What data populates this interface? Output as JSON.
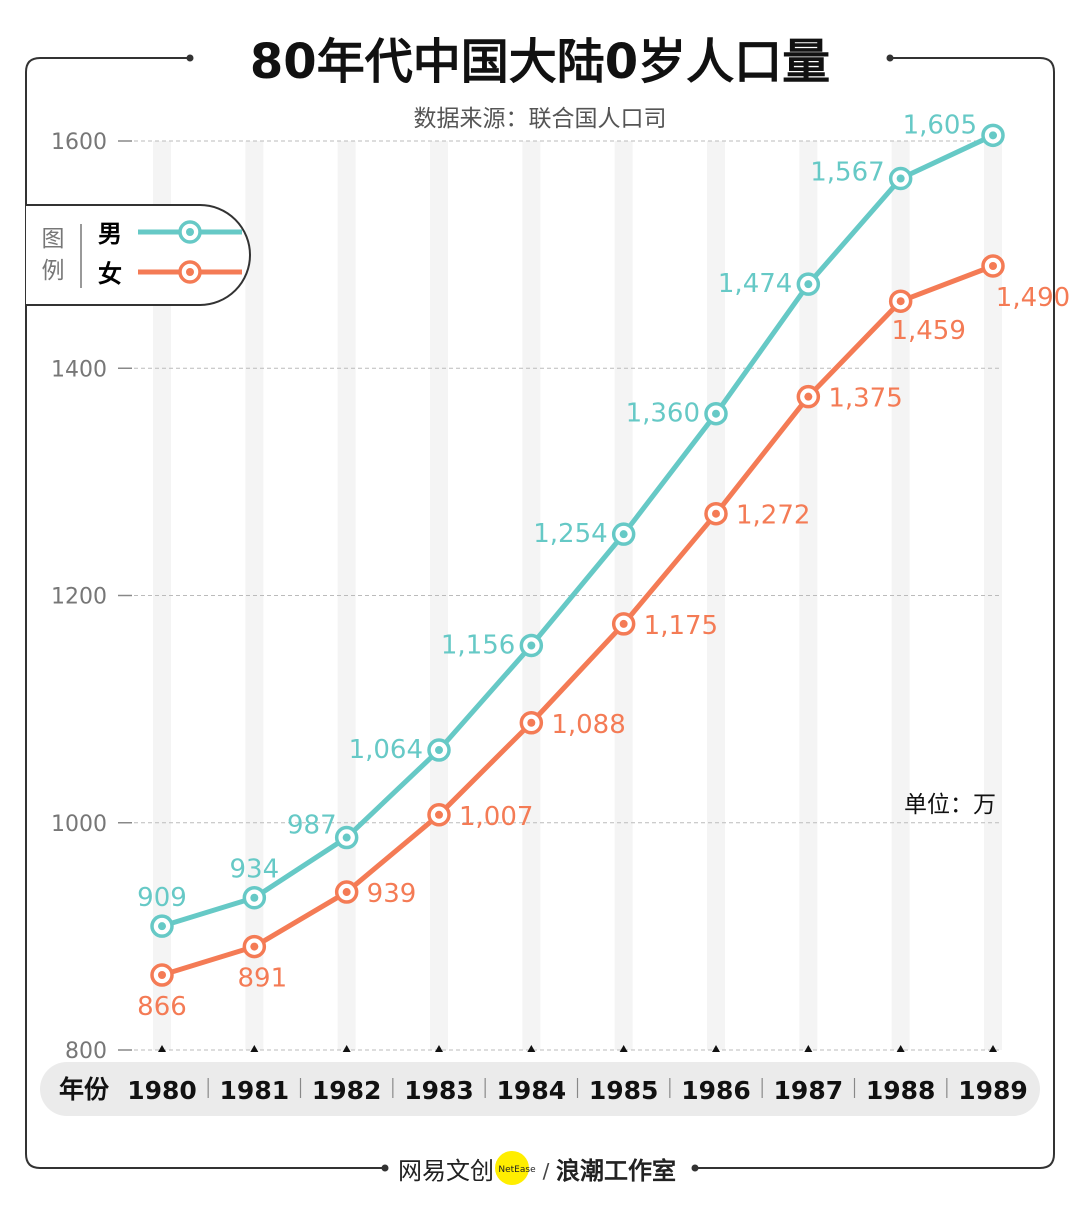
{
  "chart_data": {
    "type": "line",
    "title": "80年代中国大陆0岁人口量",
    "subtitle": "数据来源：联合国人口司",
    "unit_label": "单位：万",
    "xlabel": "年份",
    "categories": [
      "1980",
      "1981",
      "1982",
      "1983",
      "1984",
      "1985",
      "1986",
      "1987",
      "1988",
      "1989"
    ],
    "yticks": [
      800,
      1000,
      1200,
      1400,
      1600
    ],
    "ylim": [
      800,
      1600
    ],
    "grid": true,
    "legend_title": "图例",
    "legend_placement": "top-left",
    "series": [
      {
        "name": "男",
        "color": "#66c9c6",
        "values": [
          909,
          934,
          987,
          1064,
          1156,
          1254,
          1360,
          1474,
          1567,
          1605
        ],
        "labels": [
          "909",
          "934",
          "987",
          "1,064",
          "1,156",
          "1,254",
          "1,360",
          "1,474",
          "1,567",
          "1,605"
        ]
      },
      {
        "name": "女",
        "color": "#f47b55",
        "values": [
          866,
          891,
          939,
          1007,
          1088,
          1175,
          1272,
          1375,
          1459,
          1490
        ],
        "labels": [
          "866",
          "891",
          "939",
          "1,007",
          "1,088",
          "1,175",
          "1,272",
          "1,375",
          "1,459",
          "1,490"
        ]
      }
    ]
  },
  "footer": {
    "brand_left": "网易文创",
    "brand_badge": "NetEase",
    "separator": "/",
    "brand_right": "浪潮工作室",
    "badge_color": "#ffee00"
  }
}
